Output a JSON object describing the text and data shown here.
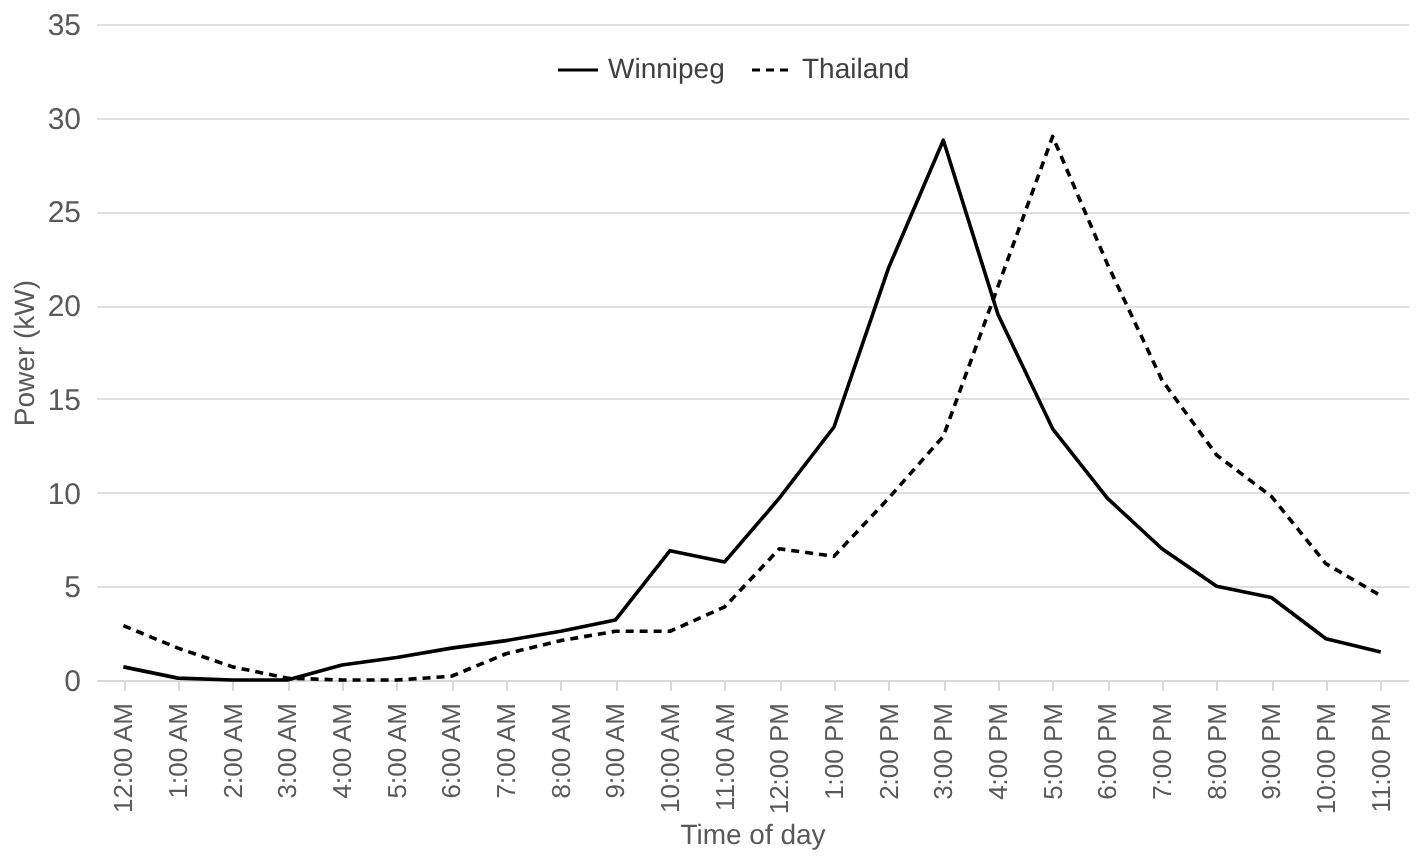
{
  "chart_data": {
    "type": "line",
    "xlabel": "Time of day",
    "ylabel": "Power (kW)",
    "categories": [
      "12:00 AM",
      "1:00 AM",
      "2:00 AM",
      "3:00 AM",
      "4:00 AM",
      "5:00 AM",
      "6:00 AM",
      "7:00 AM",
      "8:00 AM",
      "9:00 AM",
      "10:00 AM",
      "11:00 AM",
      "12:00 PM",
      "1:00 PM",
      "2:00 PM",
      "3:00 PM",
      "4:00 PM",
      "5:00 PM",
      "6:00 PM",
      "7:00 PM",
      "8:00 PM",
      "9:00 PM",
      "10:00 PM",
      "11:00 PM"
    ],
    "series": [
      {
        "name": "Winnipeg",
        "color": "#000000",
        "line_style": "solid",
        "values": [
          0.7,
          0.1,
          0,
          0,
          0.8,
          1.2,
          1.7,
          2.1,
          2.6,
          3.2,
          6.9,
          6.3,
          9.7,
          13.5,
          22,
          28.8,
          19.5,
          13.4,
          9.7,
          7,
          5,
          4.4,
          2.2,
          1.5
        ]
      },
      {
        "name": "Thailand",
        "color": "#000000",
        "line_style": "dashed",
        "values": [
          2.9,
          1.7,
          0.7,
          0.1,
          0,
          0,
          0.2,
          1.4,
          2.1,
          2.6,
          2.6,
          3.9,
          7,
          6.6,
          9.7,
          13,
          21,
          29,
          22.2,
          16,
          12,
          9.8,
          6.2,
          4.5
        ]
      }
    ],
    "ylim": [
      0,
      35
    ],
    "yticks": [
      0,
      5,
      10,
      15,
      20,
      25,
      30,
      35
    ],
    "grid": "y",
    "legend": "top",
    "marker": "none"
  }
}
